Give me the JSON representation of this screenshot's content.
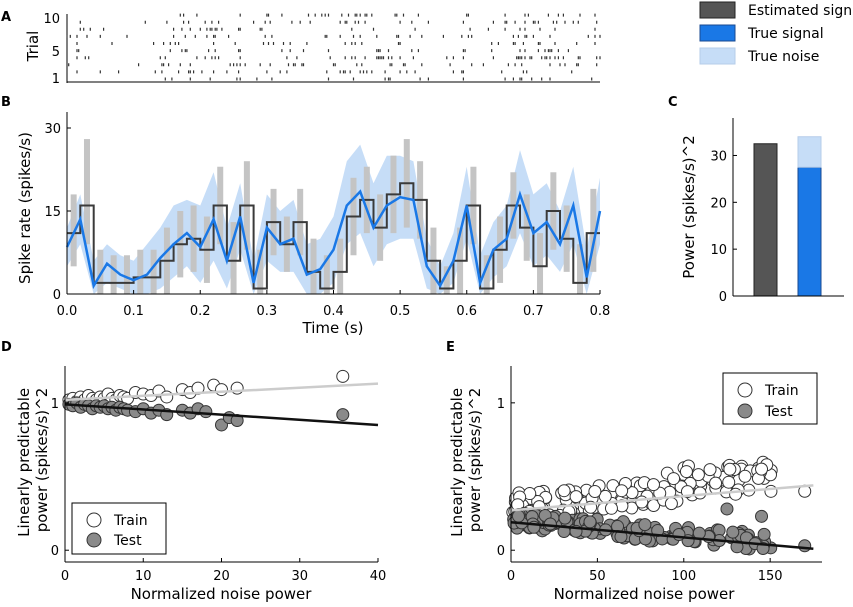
{
  "colors": {
    "estimated": "#555555",
    "true_signal": "#1a78e6",
    "true_noise": "#c6ddf7",
    "bar_gray": "#c4c4c4",
    "train_fill": "#ffffff",
    "test_fill": "#8a8a8a",
    "train_line": "#cccccc",
    "test_line": "#111111"
  },
  "panel_labels": {
    "a": "A",
    "b": "B",
    "c": "C",
    "d": "D",
    "e": "E"
  },
  "chart_data": [
    {
      "id": "A",
      "type": "scatter",
      "title": "",
      "ylabel": "Trial",
      "xlabel": "",
      "xlim": [
        0,
        0.8
      ],
      "ylim": [
        1,
        10
      ],
      "yticks": [
        "1",
        "5",
        "10"
      ],
      "trials": [
        1,
        2,
        3,
        4,
        5,
        6,
        7,
        8,
        9,
        10
      ],
      "note": "spike raster, 10 trials over 0-0.8 s"
    },
    {
      "id": "B",
      "type": "line",
      "title": "",
      "xlabel": "Time (s)",
      "ylabel": "Spike rate (spikes/s)",
      "xlim": [
        0,
        0.8
      ],
      "ylim": [
        0,
        30
      ],
      "xticks": [
        "0.0",
        "0.1",
        "0.2",
        "0.3",
        "0.4",
        "0.5",
        "0.6",
        "0.7",
        "0.8"
      ],
      "yticks": [
        "0",
        "15",
        "30"
      ],
      "bin_width": 0.02,
      "estimated_step": [
        11,
        16,
        2,
        2,
        2,
        3,
        3,
        6,
        9,
        10,
        8,
        16,
        6,
        16,
        1,
        13,
        9,
        13,
        4,
        1,
        4,
        14,
        17,
        12,
        18,
        20,
        17,
        6,
        1,
        6,
        16,
        1,
        8,
        16,
        12,
        5,
        15,
        10,
        2,
        11
      ],
      "true_signal": [
        8.5,
        13.5,
        1.5,
        5.5,
        3.5,
        2.5,
        3.5,
        6.5,
        9,
        11,
        8.5,
        13.5,
        6,
        14,
        2,
        12,
        9,
        10,
        3.5,
        4.5,
        8,
        16,
        18.5,
        12,
        16,
        17.5,
        17,
        5,
        1.5,
        6,
        16,
        2,
        8,
        10,
        18,
        11,
        13,
        9,
        16,
        3,
        15
      ],
      "noise_upper": [
        12,
        18,
        6,
        9,
        7,
        6,
        9,
        12,
        16,
        17,
        16,
        22,
        12,
        20,
        6,
        18,
        15,
        17,
        9,
        10,
        14,
        24,
        27,
        20,
        25,
        25,
        24,
        10,
        5,
        11,
        23,
        7,
        13,
        16,
        26,
        18,
        20,
        15,
        23,
        8,
        21
      ],
      "noise_lower": [
        5,
        9,
        0,
        2,
        1,
        0,
        0,
        1,
        3,
        5,
        2,
        6,
        1,
        8,
        0,
        6,
        4,
        4,
        0,
        0,
        2,
        9,
        11,
        5,
        9,
        10,
        10,
        1,
        0,
        2,
        10,
        0,
        3,
        5,
        11,
        5,
        7,
        4,
        9,
        0,
        9
      ],
      "bar_low": [
        5,
        9,
        0,
        0,
        0,
        0,
        0,
        0,
        3,
        4,
        2,
        9,
        0,
        8,
        0,
        7,
        4,
        7,
        0,
        0,
        0,
        7,
        11,
        6,
        11,
        12,
        10,
        0,
        0,
        0,
        9,
        0,
        2,
        10,
        6,
        0,
        8,
        4,
        0,
        4
      ],
      "bar_high": [
        18,
        28,
        8,
        7,
        7,
        8,
        8,
        12,
        15,
        16,
        14,
        23,
        13,
        24,
        8,
        19,
        14,
        19,
        10,
        7,
        10,
        21,
        23,
        18,
        25,
        28,
        24,
        12,
        5,
        12,
        23,
        7,
        14,
        22,
        18,
        11,
        22,
        16,
        9,
        19
      ]
    },
    {
      "id": "C",
      "type": "bar",
      "title": "",
      "xlabel": "",
      "ylabel": "Power (spikes/s)^2",
      "ylim": [
        0,
        38
      ],
      "yticks": [
        "0",
        "10",
        "20",
        "30"
      ],
      "series": [
        {
          "name": "Estimated signal",
          "values": [
            32.5
          ]
        },
        {
          "name": "True signal",
          "values": [
            27.5
          ]
        },
        {
          "name": "True noise",
          "values": [
            6.5
          ]
        }
      ],
      "legend": [
        "Estimated signal",
        "True signal",
        "True noise"
      ]
    },
    {
      "id": "D",
      "type": "scatter",
      "title": "",
      "xlabel": "Normalized noise power",
      "ylabel": "Linearly predictable power (spikes/s)^2",
      "xlim": [
        0,
        40
      ],
      "ylim": [
        -0.08,
        1.25
      ],
      "xticks": [
        "0",
        "10",
        "20",
        "30",
        "40"
      ],
      "yticks": [
        "0",
        "1"
      ],
      "legend": [
        "Train",
        "Test"
      ],
      "train_points": [
        [
          0.5,
          1.02
        ],
        [
          1,
          1.03
        ],
        [
          1.5,
          1.01
        ],
        [
          2,
          1.04
        ],
        [
          2.5,
          1.02
        ],
        [
          3,
          1.05
        ],
        [
          3.5,
          1.03
        ],
        [
          4,
          1.02
        ],
        [
          4.5,
          1.04
        ],
        [
          5,
          1.03
        ],
        [
          5.5,
          1.06
        ],
        [
          6,
          1.03
        ],
        [
          6.5,
          1.02
        ],
        [
          7,
          1.05
        ],
        [
          7.5,
          1.04
        ],
        [
          8,
          1.03
        ],
        [
          9,
          1.07
        ],
        [
          10,
          1.06
        ],
        [
          11,
          1.05
        ],
        [
          12,
          1.08
        ],
        [
          13,
          1.04
        ],
        [
          15,
          1.09
        ],
        [
          16,
          1.07
        ],
        [
          17,
          1.1
        ],
        [
          19,
          1.12
        ],
        [
          20,
          1.09
        ],
        [
          22,
          1.1
        ],
        [
          35.5,
          1.18
        ]
      ],
      "test_points": [
        [
          0.5,
          0.99
        ],
        [
          1,
          0.98
        ],
        [
          1.5,
          1.0
        ],
        [
          2,
          0.97
        ],
        [
          2.5,
          0.99
        ],
        [
          3,
          0.98
        ],
        [
          3.5,
          0.96
        ],
        [
          4,
          0.98
        ],
        [
          4.5,
          0.97
        ],
        [
          5,
          0.98
        ],
        [
          5.5,
          0.96
        ],
        [
          6,
          0.97
        ],
        [
          6.5,
          0.95
        ],
        [
          7,
          0.97
        ],
        [
          7.5,
          0.96
        ],
        [
          8,
          0.95
        ],
        [
          9,
          0.94
        ],
        [
          10,
          0.96
        ],
        [
          11,
          0.93
        ],
        [
          12,
          0.95
        ],
        [
          13,
          0.92
        ],
        [
          15,
          0.95
        ],
        [
          16,
          0.93
        ],
        [
          17,
          0.96
        ],
        [
          18,
          0.94
        ],
        [
          20,
          0.85
        ],
        [
          21,
          0.9
        ],
        [
          22,
          0.88
        ],
        [
          35.5,
          0.92
        ]
      ],
      "train_fit": [
        [
          0,
          1.02
        ],
        [
          40,
          1.13
        ]
      ],
      "test_fit": [
        [
          0,
          0.99
        ],
        [
          40,
          0.85
        ]
      ]
    },
    {
      "id": "E",
      "type": "scatter",
      "title": "",
      "xlabel": "Normalized noise power",
      "ylabel": "Linearly predictable power (spikes/s)^2",
      "xlim": [
        0,
        180
      ],
      "ylim": [
        -0.08,
        1.25
      ],
      "xticks": [
        "0",
        "50",
        "100",
        "150"
      ],
      "yticks": [
        "0",
        "1"
      ],
      "legend": [
        "Train",
        "Test"
      ],
      "train_fit": [
        [
          0,
          0.27
        ],
        [
          175,
          0.44
        ]
      ],
      "test_fit": [
        [
          0,
          0.19
        ],
        [
          175,
          0.01
        ]
      ]
    }
  ]
}
